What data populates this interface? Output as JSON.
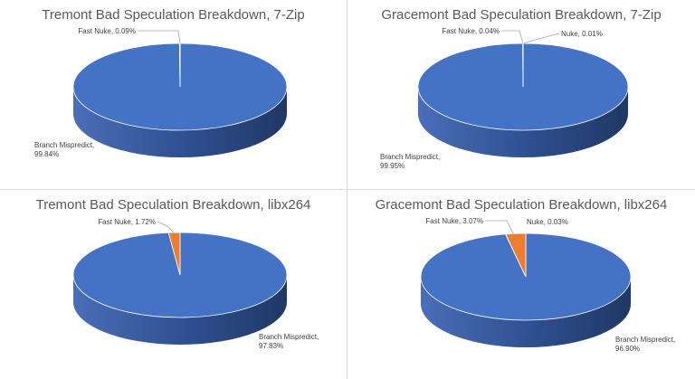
{
  "colors": {
    "branch_top": "#4472C4",
    "branch_side_dark": "#1F3864",
    "branch_side_light": "#4A6EB8",
    "fast_nuke": "#ED7D31",
    "nuke": "#A5A5A5",
    "label": "#404040",
    "title": "#595959",
    "leader": "#A6A6A6"
  },
  "chart_data": [
    {
      "type": "pie",
      "title": "Tremont Bad Speculation Breakdown, 7-Zip",
      "slices": [
        {
          "name": "Branch Mispredict",
          "value": 99.84,
          "label": [
            "Branch Mispredict,",
            "99.84%"
          ]
        },
        {
          "name": "Fast Nuke",
          "value": 0.09,
          "label": [
            "Fast Nuke, 0.09%"
          ]
        }
      ]
    },
    {
      "type": "pie",
      "title": "Gracemont Bad Speculation Breakdown, 7-Zip",
      "slices": [
        {
          "name": "Branch Mispredict",
          "value": 99.95,
          "label": [
            "Branch Mispredict,",
            "99.95%"
          ]
        },
        {
          "name": "Fast Nuke",
          "value": 0.04,
          "label": [
            "Fast Nuke, 0.04%"
          ]
        },
        {
          "name": "Nuke",
          "value": 0.01,
          "label": [
            "Nuke, 0.01%"
          ]
        }
      ]
    },
    {
      "type": "pie",
      "title": "Tremont Bad Speculation Breakdown, libx264",
      "slices": [
        {
          "name": "Branch Mispredict",
          "value": 97.83,
          "label": [
            "Branch Mispredict,",
            "97.83%"
          ]
        },
        {
          "name": "Fast Nuke",
          "value": 1.72,
          "label": [
            "Fast Nuke, 1.72%"
          ]
        }
      ]
    },
    {
      "type": "pie",
      "title": "Gracemont Bad Speculation Breakdown, libx264",
      "slices": [
        {
          "name": "Branch Mispredict",
          "value": 96.9,
          "label": [
            "Branch Mispredict,",
            "96.90%"
          ]
        },
        {
          "name": "Fast Nuke",
          "value": 3.07,
          "label": [
            "Fast Nuke, 3.07%"
          ]
        },
        {
          "name": "Nuke",
          "value": 0.03,
          "label": [
            "Nuke, 0.03%"
          ]
        }
      ]
    }
  ]
}
